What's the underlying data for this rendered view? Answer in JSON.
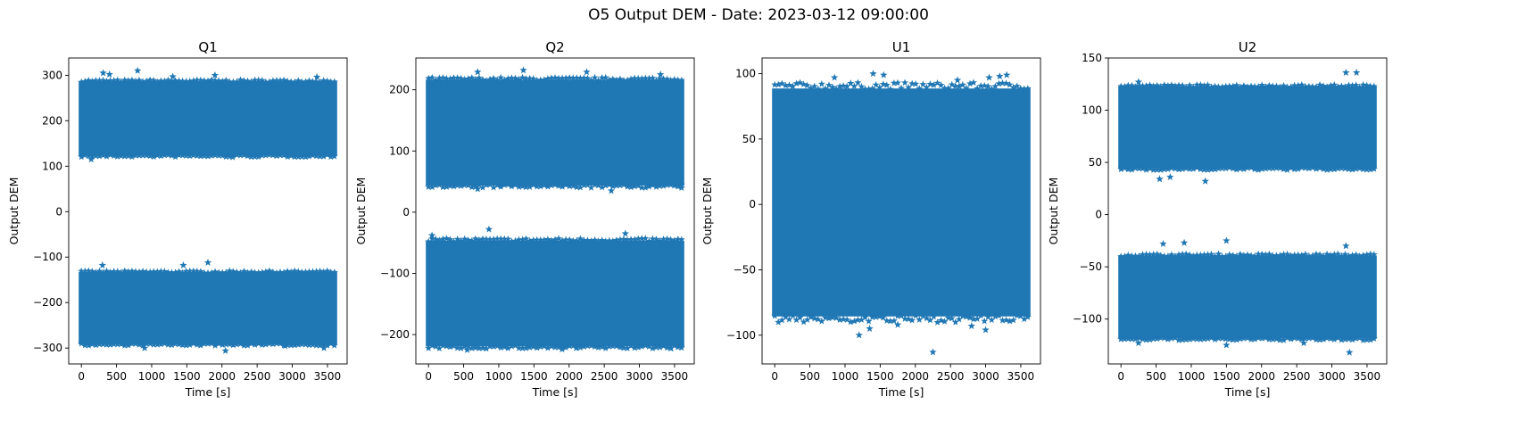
{
  "figure": {
    "suptitle": "O5 Output DEM - Date: 2023-03-12 09:00:00",
    "marker_color": "#1f77b4",
    "marker": "star"
  },
  "chart_data": [
    {
      "type": "scatter",
      "title": "Q1",
      "xlabel": "Time [s]",
      "ylabel": "Output DEM",
      "xlim": [
        -180,
        3780
      ],
      "ylim": [
        -335,
        338
      ],
      "xticks": [
        0,
        500,
        1000,
        1500,
        2000,
        2500,
        3000,
        3500
      ],
      "yticks": [
        -300,
        -200,
        -100,
        0,
        100,
        200,
        300
      ],
      "x_range": [
        0,
        3600
      ],
      "bands": [
        {
          "low": 125,
          "high": 285
        },
        {
          "low": -290,
          "high": -135
        }
      ],
      "outliers": [
        [
          310,
          305
        ],
        [
          800,
          310
        ],
        [
          1300,
          297
        ],
        [
          1900,
          300
        ],
        [
          3350,
          296
        ],
        [
          140,
          115
        ],
        [
          2150,
          120
        ],
        [
          400,
          302
        ],
        [
          2050,
          -306
        ],
        [
          1800,
          -112
        ],
        [
          3450,
          -300
        ],
        [
          300,
          -118
        ],
        [
          900,
          -300
        ],
        [
          1450,
          -118
        ],
        [
          2900,
          -295
        ]
      ]
    },
    {
      "type": "scatter",
      "title": "Q2",
      "xlabel": "Time [s]",
      "ylabel": "Output DEM",
      "xlim": [
        -180,
        3780
      ],
      "ylim": [
        -248,
        252
      ],
      "xticks": [
        0,
        500,
        1000,
        1500,
        2000,
        2500,
        3000,
        3500
      ],
      "yticks": [
        -200,
        -100,
        0,
        100,
        200
      ],
      "x_range": [
        0,
        3600
      ],
      "bands": [
        {
          "low": 45,
          "high": 215
        },
        {
          "low": -218,
          "high": -48
        }
      ],
      "outliers": [
        [
          1350,
          232
        ],
        [
          700,
          229
        ],
        [
          2250,
          229
        ],
        [
          3300,
          225
        ],
        [
          2600,
          35
        ],
        [
          700,
          38
        ],
        [
          860,
          -28
        ],
        [
          2800,
          -35
        ],
        [
          50,
          -38
        ],
        [
          2100,
          -222
        ],
        [
          550,
          -225
        ],
        [
          1900,
          -224
        ],
        [
          3600,
          40
        ],
        [
          3450,
          -222
        ]
      ]
    },
    {
      "type": "scatter",
      "title": "U1",
      "xlabel": "Time [s]",
      "ylabel": "Output DEM",
      "xlim": [
        -180,
        3780
      ],
      "ylim": [
        -122,
        112
      ],
      "xticks": [
        0,
        500,
        1000,
        1500,
        2000,
        2500,
        3000,
        3500
      ],
      "yticks": [
        -100,
        -50,
        0,
        50,
        100
      ],
      "x_range": [
        0,
        3600
      ],
      "bands": [
        {
          "low": -85,
          "high": 88
        }
      ],
      "outliers": [
        [
          1400,
          100
        ],
        [
          850,
          97
        ],
        [
          1550,
          99
        ],
        [
          2600,
          95
        ],
        [
          3200,
          98
        ],
        [
          3300,
          99
        ],
        [
          3050,
          97
        ],
        [
          2250,
          -113
        ],
        [
          1200,
          -100
        ],
        [
          2800,
          -93
        ],
        [
          3000,
          -96
        ],
        [
          1350,
          -95
        ],
        [
          1750,
          -92
        ]
      ]
    },
    {
      "type": "scatter",
      "title": "U2",
      "xlabel": "Time [s]",
      "ylabel": "Output DEM",
      "xlim": [
        -180,
        3780
      ],
      "ylim": [
        -143,
        150
      ],
      "xticks": [
        0,
        500,
        1000,
        1500,
        2000,
        2500,
        3000,
        3500
      ],
      "yticks": [
        -100,
        -50,
        0,
        50,
        100,
        150
      ],
      "x_range": [
        0,
        3600
      ],
      "bands": [
        {
          "low": 45,
          "high": 122
        },
        {
          "low": -118,
          "high": -40
        }
      ],
      "outliers": [
        [
          3200,
          136
        ],
        [
          3350,
          136
        ],
        [
          250,
          127
        ],
        [
          550,
          34
        ],
        [
          1200,
          32
        ],
        [
          700,
          36
        ],
        [
          1500,
          -25
        ],
        [
          600,
          -28
        ],
        [
          900,
          -27
        ],
        [
          3200,
          -30
        ],
        [
          3250,
          -132
        ],
        [
          1500,
          -125
        ],
        [
          250,
          -123
        ],
        [
          2600,
          -123
        ]
      ]
    }
  ]
}
